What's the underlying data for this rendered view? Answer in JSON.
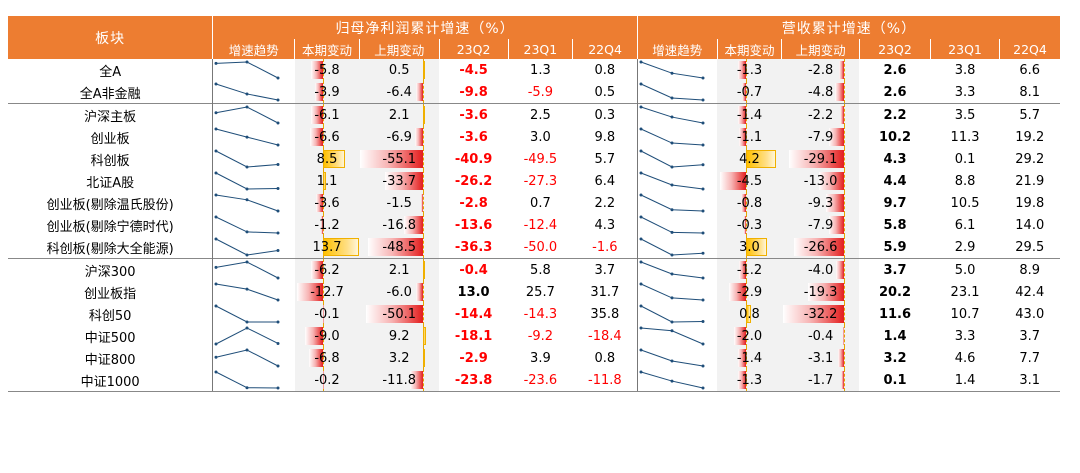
{
  "headers": {
    "sector": "板块",
    "profit_group": "归母净利润累计增速（%）",
    "revenue_group": "营收累计增速（%）",
    "sub": [
      "增速趋势",
      "本期变动",
      "上期变动",
      "23Q2",
      "23Q1",
      "22Q4"
    ]
  },
  "colors": {
    "header": "#ED7D31",
    "negative": "#FF0000",
    "positive_bar": "#FFC000"
  },
  "rows": [
    {
      "name": "全A",
      "sep": false,
      "p_chg": "-5.8",
      "p_prev": "0.5",
      "p_q2": "-4.5",
      "p_q1": "1.3",
      "p_q4": "0.8",
      "r_chg": "-1.3",
      "r_prev": "-2.8",
      "r_q2": "2.6",
      "r_q1": "3.8",
      "r_q4": "6.6"
    },
    {
      "name": "全A非金融",
      "sep": false,
      "p_chg": "-3.9",
      "p_prev": "-6.4",
      "p_q2": "-9.8",
      "p_q1": "-5.9",
      "p_q4": "0.5",
      "r_chg": "-0.7",
      "r_prev": "-4.8",
      "r_q2": "2.6",
      "r_q1": "3.3",
      "r_q4": "8.1"
    },
    {
      "name": "沪深主板",
      "sep": true,
      "p_chg": "-6.1",
      "p_prev": "2.1",
      "p_q2": "-3.6",
      "p_q1": "2.5",
      "p_q4": "0.3",
      "r_chg": "-1.4",
      "r_prev": "-2.2",
      "r_q2": "2.2",
      "r_q1": "3.5",
      "r_q4": "5.7"
    },
    {
      "name": "创业板",
      "sep": false,
      "p_chg": "-6.6",
      "p_prev": "-6.9",
      "p_q2": "-3.6",
      "p_q1": "3.0",
      "p_q4": "9.8",
      "r_chg": "-1.1",
      "r_prev": "-7.9",
      "r_q2": "10.2",
      "r_q1": "11.3",
      "r_q4": "19.2"
    },
    {
      "name": "科创板",
      "sep": false,
      "p_chg": "8.5",
      "p_prev": "-55.1",
      "p_q2": "-40.9",
      "p_q1": "-49.5",
      "p_q4": "5.7",
      "r_chg": "4.2",
      "r_prev": "-29.1",
      "r_q2": "4.3",
      "r_q1": "0.1",
      "r_q4": "29.2"
    },
    {
      "name": "北证A股",
      "sep": false,
      "p_chg": "1.1",
      "p_prev": "-33.7",
      "p_q2": "-26.2",
      "p_q1": "-27.3",
      "p_q4": "6.4",
      "r_chg": "-4.5",
      "r_prev": "-13.0",
      "r_q2": "4.4",
      "r_q1": "8.8",
      "r_q4": "21.9"
    },
    {
      "name": "创业板(剔除温氏股份)",
      "sep": false,
      "p_chg": "-3.6",
      "p_prev": "-1.5",
      "p_q2": "-2.8",
      "p_q1": "0.7",
      "p_q4": "2.2",
      "r_chg": "-0.8",
      "r_prev": "-9.3",
      "r_q2": "9.7",
      "r_q1": "10.5",
      "r_q4": "19.8"
    },
    {
      "name": "创业板(剔除宁德时代)",
      "sep": false,
      "p_chg": "-1.2",
      "p_prev": "-16.8",
      "p_q2": "-13.6",
      "p_q1": "-12.4",
      "p_q4": "4.3",
      "r_chg": "-0.3",
      "r_prev": "-7.9",
      "r_q2": "5.8",
      "r_q1": "6.1",
      "r_q4": "14.0"
    },
    {
      "name": "科创板(剔除大全能源)",
      "sep": false,
      "p_chg": "13.7",
      "p_prev": "-48.5",
      "p_q2": "-36.3",
      "p_q1": "-50.0",
      "p_q4": "-1.6",
      "r_chg": "3.0",
      "r_prev": "-26.6",
      "r_q2": "5.9",
      "r_q1": "2.9",
      "r_q4": "29.5"
    },
    {
      "name": "沪深300",
      "sep": true,
      "p_chg": "-6.2",
      "p_prev": "2.1",
      "p_q2": "-0.4",
      "p_q1": "5.8",
      "p_q4": "3.7",
      "r_chg": "-1.2",
      "r_prev": "-4.0",
      "r_q2": "3.7",
      "r_q1": "5.0",
      "r_q4": "8.9"
    },
    {
      "name": "创业板指",
      "sep": false,
      "p_chg": "-12.7",
      "p_prev": "-6.0",
      "p_q2": "13.0",
      "p_q1": "25.7",
      "p_q4": "31.7",
      "r_chg": "-2.9",
      "r_prev": "-19.3",
      "r_q2": "20.2",
      "r_q1": "23.1",
      "r_q4": "42.4"
    },
    {
      "name": "科创50",
      "sep": false,
      "p_chg": "-0.1",
      "p_prev": "-50.1",
      "p_q2": "-14.4",
      "p_q1": "-14.3",
      "p_q4": "35.8",
      "r_chg": "0.8",
      "r_prev": "-32.2",
      "r_q2": "11.6",
      "r_q1": "10.7",
      "r_q4": "43.0"
    },
    {
      "name": "中证500",
      "sep": false,
      "p_chg": "-9.0",
      "p_prev": "9.2",
      "p_q2": "-18.1",
      "p_q1": "-9.2",
      "p_q4": "-18.4",
      "r_chg": "-2.0",
      "r_prev": "-0.4",
      "r_q2": "1.4",
      "r_q1": "3.3",
      "r_q4": "3.7"
    },
    {
      "name": "中证800",
      "sep": false,
      "p_chg": "-6.8",
      "p_prev": "3.2",
      "p_q2": "-2.9",
      "p_q1": "3.9",
      "p_q4": "0.8",
      "r_chg": "-1.4",
      "r_prev": "-3.1",
      "r_q2": "3.2",
      "r_q1": "4.6",
      "r_q4": "7.7"
    },
    {
      "name": "中证1000",
      "sep": false,
      "p_chg": "-0.2",
      "p_prev": "-11.8",
      "p_q2": "-23.8",
      "p_q1": "-23.6",
      "p_q4": "-11.8",
      "r_chg": "-1.3",
      "r_prev": "-1.7",
      "r_q2": "0.1",
      "r_q1": "1.4",
      "r_q4": "3.1"
    }
  ]
}
